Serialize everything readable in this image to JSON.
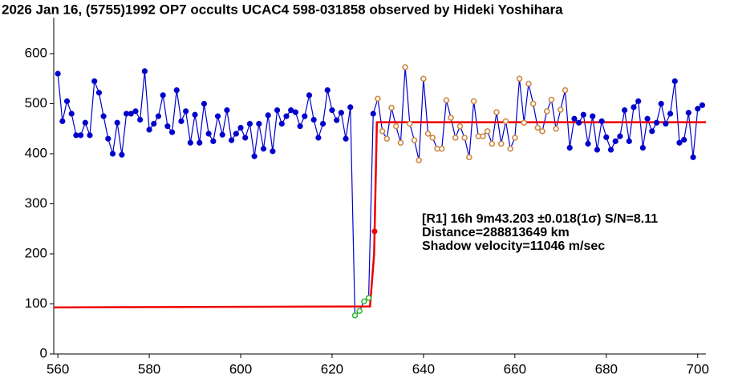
{
  "chart_data": {
    "type": "line",
    "title": "2026 Jan 16, (5755)1992 OP7 occults UCAC4 598-031858 observed by Hideki Yoshihara",
    "annotations": [
      "[R1] 16h 9m43.203 ±0.018(1σ) S/N=8.11",
      "Distance=288813649 km",
      "Shadow velocity=11046 m/sec"
    ],
    "xlim": [
      559.1,
      701.8
    ],
    "ylim": [
      0,
      672
    ],
    "xticks": [
      560,
      580,
      600,
      620,
      640,
      660,
      680,
      700
    ],
    "yticks": [
      0,
      100,
      200,
      300,
      400,
      500,
      600
    ],
    "series": [
      {
        "color": "#0000cc",
        "x": [
          560,
          561,
          562,
          563,
          564,
          565,
          566,
          567,
          568,
          569,
          570,
          571,
          572,
          573,
          574,
          575,
          576,
          577,
          578,
          579,
          580,
          581,
          582,
          583,
          584,
          585,
          586,
          587,
          588,
          589,
          590,
          591,
          592,
          593,
          594,
          595,
          596,
          597,
          598,
          599,
          600,
          601,
          602,
          603,
          604,
          605,
          606,
          607,
          608,
          609,
          610,
          611,
          612,
          613,
          614,
          615,
          616,
          617,
          618,
          619,
          620,
          621,
          622,
          623,
          624,
          625,
          626,
          627,
          628,
          629,
          630,
          631,
          632,
          633,
          634,
          635,
          636,
          637,
          638,
          639,
          640,
          641,
          642,
          643,
          644,
          645,
          646,
          647,
          648,
          649,
          650,
          651,
          652,
          653,
          654,
          655,
          656,
          657,
          658,
          659,
          660,
          661,
          662,
          663,
          664,
          665,
          666,
          667,
          668,
          669,
          670,
          671,
          672,
          673,
          674,
          675,
          676,
          677,
          678,
          679,
          680,
          681,
          682,
          683,
          684,
          685,
          686,
          687,
          688,
          689,
          690,
          691,
          692,
          693,
          694,
          695,
          696,
          697,
          698,
          699,
          700,
          701
        ],
        "values": [
          560,
          465,
          505,
          480,
          437,
          437,
          462,
          437,
          545,
          522,
          475,
          430,
          400,
          462,
          398,
          480,
          480,
          485,
          468,
          565,
          448,
          460,
          475,
          517,
          455,
          443,
          527,
          465,
          485,
          422,
          478,
          422,
          500,
          440,
          425,
          475,
          438,
          487,
          427,
          440,
          452,
          432,
          460,
          395,
          460,
          410,
          477,
          405,
          487,
          460,
          475,
          487,
          483,
          455,
          475,
          517,
          468,
          432,
          460,
          527,
          487,
          467,
          482,
          430,
          493,
          77,
          86,
          105,
          112,
          480,
          510,
          445,
          430,
          492,
          455,
          422,
          573,
          460,
          427,
          387,
          550,
          440,
          432,
          410,
          410,
          507,
          472,
          432,
          455,
          432,
          393,
          505,
          435,
          435,
          445,
          420,
          483,
          420,
          465,
          410,
          432,
          550,
          462,
          540,
          500,
          452,
          445,
          485,
          508,
          450,
          488,
          527,
          412,
          470,
          462,
          478,
          420,
          475,
          408,
          465,
          433,
          408,
          425,
          435,
          487,
          425,
          493,
          505,
          412,
          470,
          445,
          462,
          500,
          460,
          480,
          545,
          422,
          428,
          482,
          393,
          490,
          497
        ],
        "marker_colors": [
          "#0000cc",
          "#0000cc",
          "#0000cc",
          "#0000cc",
          "#0000cc",
          "#0000cc",
          "#0000cc",
          "#0000cc",
          "#0000cc",
          "#0000cc",
          "#0000cc",
          "#0000cc",
          "#0000cc",
          "#0000cc",
          "#0000cc",
          "#0000cc",
          "#0000cc",
          "#0000cc",
          "#0000cc",
          "#0000cc",
          "#0000cc",
          "#0000cc",
          "#0000cc",
          "#0000cc",
          "#0000cc",
          "#0000cc",
          "#0000cc",
          "#0000cc",
          "#0000cc",
          "#0000cc",
          "#0000cc",
          "#0000cc",
          "#0000cc",
          "#0000cc",
          "#0000cc",
          "#0000cc",
          "#0000cc",
          "#0000cc",
          "#0000cc",
          "#0000cc",
          "#0000cc",
          "#0000cc",
          "#0000cc",
          "#0000cc",
          "#0000cc",
          "#0000cc",
          "#0000cc",
          "#0000cc",
          "#0000cc",
          "#0000cc",
          "#0000cc",
          "#0000cc",
          "#0000cc",
          "#0000cc",
          "#0000cc",
          "#0000cc",
          "#0000cc",
          "#0000cc",
          "#0000cc",
          "#0000cc",
          "#0000cc",
          "#0000cc",
          "#0000cc",
          "#0000cc",
          "#0000cc",
          "#33bb33",
          "#33bb33",
          "#33bb33",
          "#33bb33",
          "#0000cc",
          "#cc8844",
          "#cc8844",
          "#cc8844",
          "#cc8844",
          "#cc8844",
          "#cc8844",
          "#cc8844",
          "#cc8844",
          "#cc8844",
          "#cc8844",
          "#cc8844",
          "#cc8844",
          "#cc8844",
          "#cc8844",
          "#cc8844",
          "#cc8844",
          "#cc8844",
          "#cc8844",
          "#cc8844",
          "#cc8844",
          "#cc8844",
          "#cc8844",
          "#cc8844",
          "#cc8844",
          "#cc8844",
          "#cc8844",
          "#cc8844",
          "#cc8844",
          "#cc8844",
          "#cc8844",
          "#cc8844",
          "#cc8844",
          "#cc8844",
          "#cc8844",
          "#cc8844",
          "#cc8844",
          "#cc8844",
          "#cc8844",
          "#cc8844",
          "#cc8844",
          "#cc8844",
          "#cc8844",
          "#0000cc",
          "#0000cc",
          "#0000cc",
          "#0000cc",
          "#0000cc",
          "#0000cc",
          "#0000cc",
          "#0000cc",
          "#0000cc",
          "#0000cc",
          "#0000cc",
          "#0000cc",
          "#0000cc",
          "#0000cc",
          "#0000cc",
          "#0000cc",
          "#0000cc",
          "#0000cc",
          "#0000cc",
          "#0000cc",
          "#0000cc",
          "#0000cc",
          "#0000cc",
          "#0000cc",
          "#0000cc",
          "#0000cc",
          "#0000cc",
          "#0000cc",
          "#0000cc",
          "#0000cc"
        ]
      }
    ],
    "model": {
      "color": "#ee0000",
      "x": [
        559.1,
        628.3,
        629.2,
        629.8,
        701.8
      ],
      "values": [
        93,
        95,
        200,
        463,
        463
      ]
    },
    "event": {
      "color": "#ee0000",
      "x": 629.3,
      "value": 245
    }
  }
}
